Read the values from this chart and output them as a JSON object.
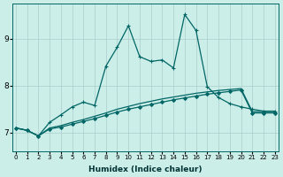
{
  "xlabel": "Humidex (Indice chaleur)",
  "bg_color": "#cceee8",
  "grid_color": "#aacccc",
  "line_color": "#006666",
  "x_ticks": [
    0,
    1,
    2,
    3,
    4,
    5,
    6,
    7,
    8,
    9,
    10,
    11,
    12,
    13,
    14,
    15,
    16,
    17,
    18,
    19,
    20,
    21,
    22,
    23
  ],
  "y_ticks": [
    7,
    8,
    9
  ],
  "xlim": [
    -0.3,
    23.3
  ],
  "ylim": [
    6.6,
    9.75
  ],
  "series": [
    {
      "y": [
        7.1,
        7.05,
        6.93,
        7.1,
        7.15,
        7.22,
        7.28,
        7.35,
        7.42,
        7.5,
        7.56,
        7.62,
        7.67,
        7.72,
        7.76,
        7.8,
        7.84,
        7.87,
        7.9,
        7.92,
        7.94,
        7.45,
        7.45,
        7.45
      ],
      "marker": null,
      "linewidth": 0.9
    },
    {
      "y": [
        7.1,
        7.05,
        6.93,
        7.08,
        7.12,
        7.18,
        7.24,
        7.3,
        7.37,
        7.44,
        7.5,
        7.55,
        7.6,
        7.65,
        7.7,
        7.74,
        7.78,
        7.82,
        7.85,
        7.88,
        7.91,
        7.42,
        7.42,
        7.42
      ],
      "marker": "D",
      "linewidth": 0.9
    },
    {
      "y": [
        7.1,
        7.05,
        6.93,
        7.22,
        7.38,
        7.55,
        7.65,
        7.58,
        8.42,
        8.82,
        9.28,
        8.62,
        8.52,
        8.55,
        8.38,
        9.52,
        9.18,
        7.98,
        7.75,
        7.62,
        7.55,
        7.5,
        7.46,
        7.46
      ],
      "marker": "+",
      "linewidth": 0.9
    }
  ]
}
